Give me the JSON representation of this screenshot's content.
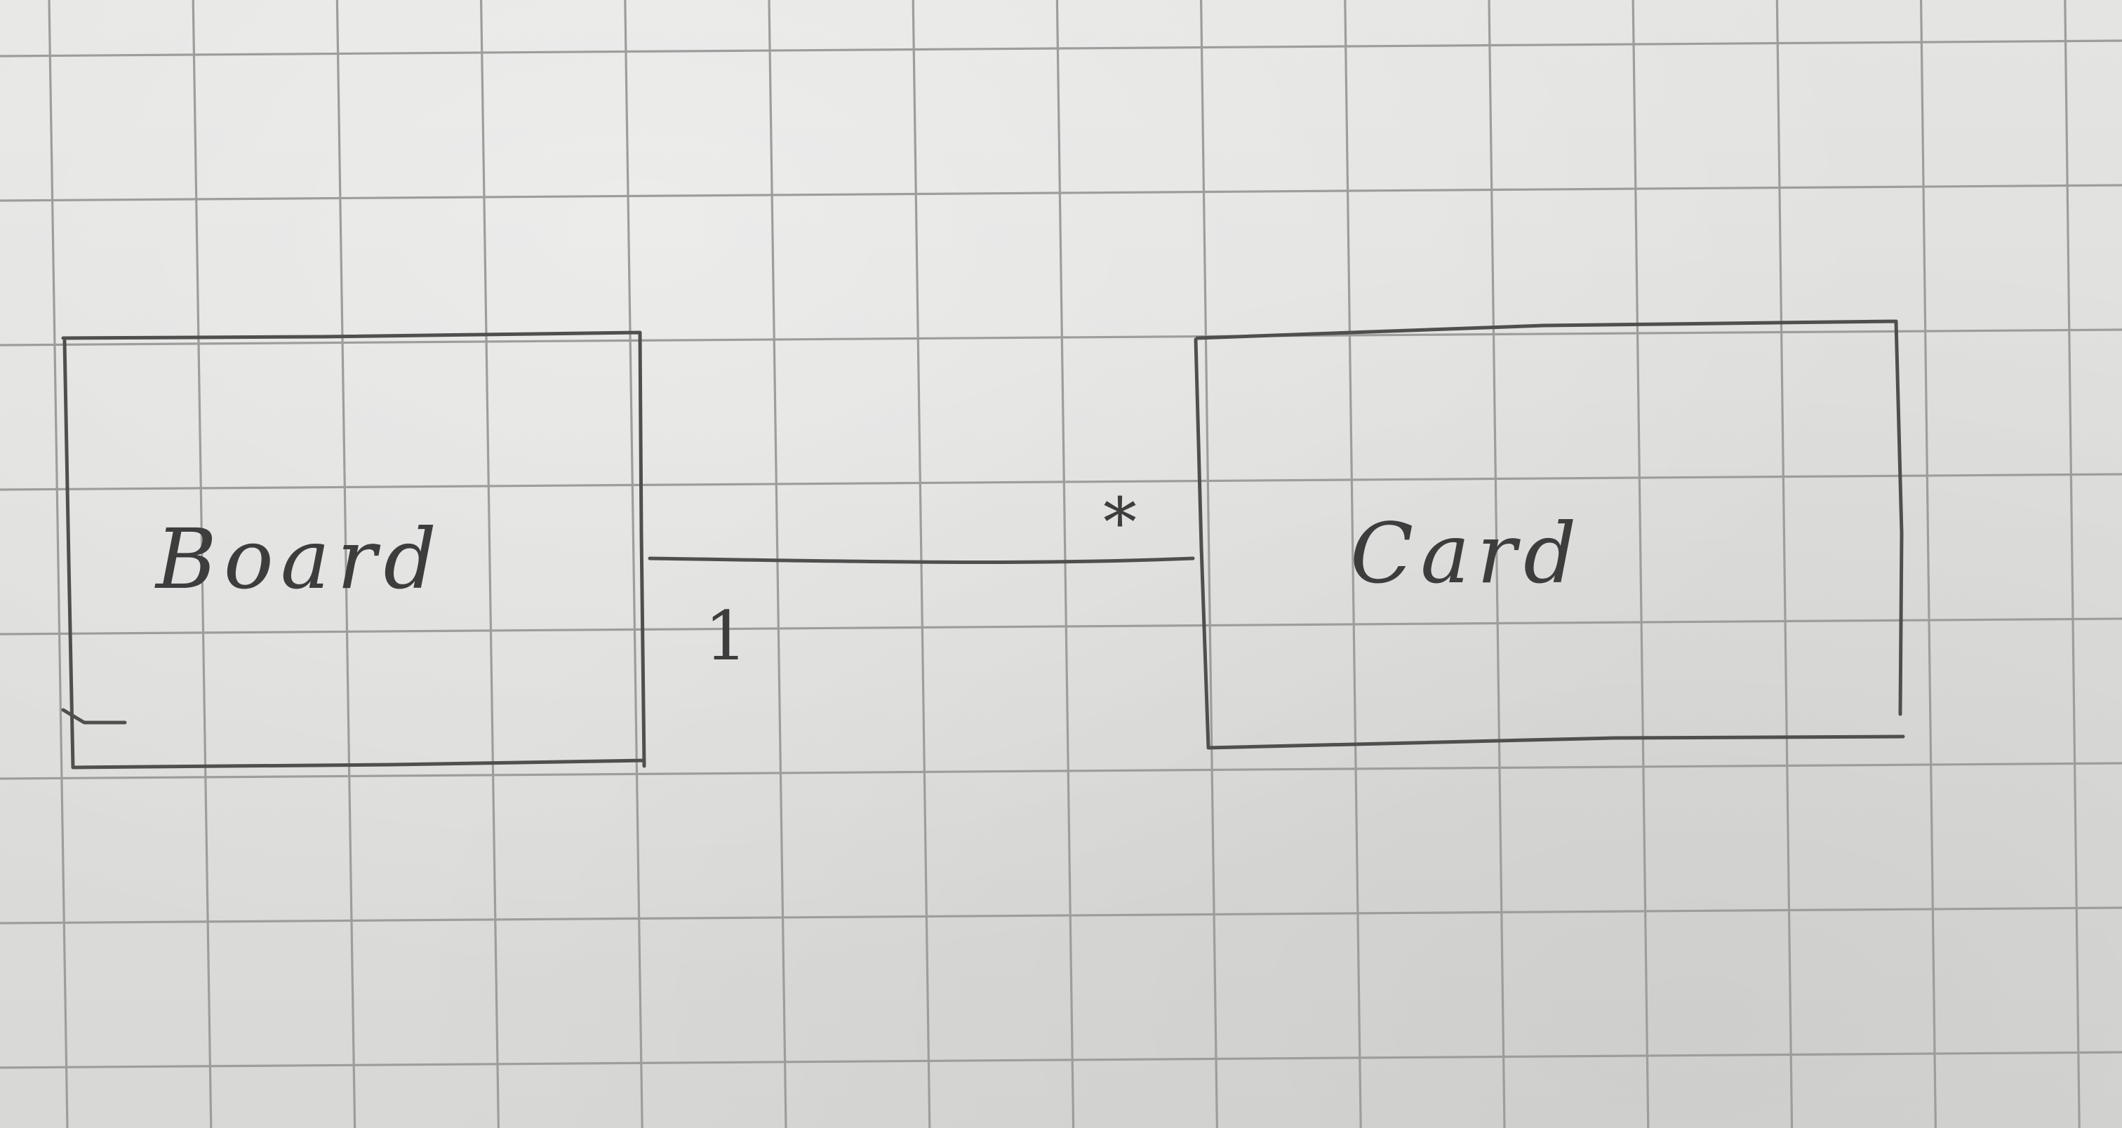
{
  "diagram": {
    "classes": [
      {
        "id": "board",
        "name": "Board"
      },
      {
        "id": "card",
        "name": "Card"
      }
    ],
    "association": {
      "from": "board",
      "to": "card",
      "from_multiplicity": "1",
      "to_multiplicity": "*"
    }
  },
  "colors": {
    "paper": "#dededc",
    "grid": "#9d9d9b",
    "pencil": "#4f4f4f"
  }
}
